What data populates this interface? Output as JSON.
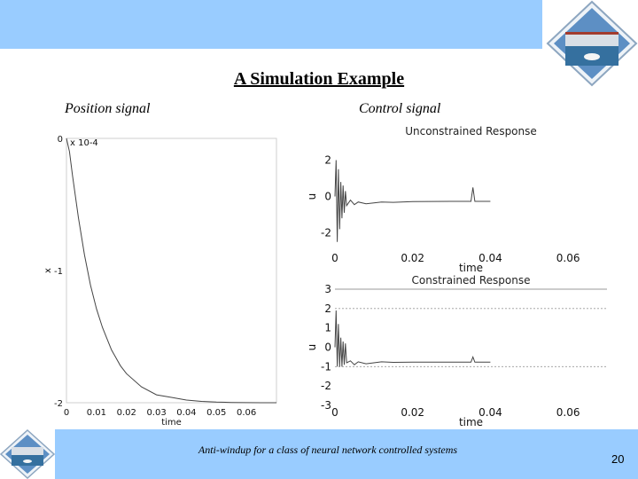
{
  "slide": {
    "title": "A Simulation Example",
    "left_caption": "Position signal",
    "right_caption": "Control signal",
    "footer": "Anti-windup for a class of neural network controlled systems",
    "page_number": "20"
  },
  "colors": {
    "band": "#99ccff",
    "logo_sky": "#5d8fc4",
    "logo_water": "#35709f"
  },
  "chart_data": [
    {
      "type": "line",
      "title": "",
      "xlabel": "time",
      "ylabel": "x",
      "y_multiplier": "x 10-4",
      "xlim": [
        0,
        0.07
      ],
      "ylim": [
        -2,
        0
      ],
      "xticks": [
        "0",
        "0.01",
        "0.02",
        "0.03",
        "0.04",
        "0.05",
        "0.06"
      ],
      "xtick_values": [
        0,
        0.01,
        0.02,
        0.03,
        0.04,
        0.05,
        0.06
      ],
      "yticks": [
        "0",
        "-1",
        "-2"
      ],
      "ytick_values": [
        0,
        -1,
        -2
      ],
      "series": [
        {
          "x": [
            0,
            0.001,
            0.002,
            0.004,
            0.006,
            0.008,
            0.01,
            0.012,
            0.015,
            0.018,
            0.02,
            0.025,
            0.03,
            0.035,
            0.04,
            0.045,
            0.05,
            0.055,
            0.06,
            0.065,
            0.07
          ],
          "values": [
            0,
            -0.1,
            -0.28,
            -0.6,
            -0.88,
            -1.11,
            -1.29,
            -1.43,
            -1.6,
            -1.72,
            -1.78,
            -1.88,
            -1.94,
            -1.96,
            -1.98,
            -1.99,
            -1.995,
            -1.998,
            -1.999,
            -2.0,
            -2.0
          ]
        }
      ]
    },
    {
      "type": "line",
      "title": "Unconstrained Response",
      "xlabel": "time",
      "ylabel": "u",
      "xlim": [
        0,
        0.07
      ],
      "ylim": [
        -3,
        3
      ],
      "xticks": [
        "0",
        "0.02",
        "0.04",
        "0.06"
      ],
      "xtick_values": [
        0,
        0.02,
        0.04,
        0.06
      ],
      "yticks": [
        "2",
        "0",
        "-2"
      ],
      "ytick_values": [
        2,
        0,
        -2
      ],
      "series": [
        {
          "x": [
            0,
            0.0003,
            0.0006,
            0.0009,
            0.0012,
            0.0015,
            0.0018,
            0.0021,
            0.0024,
            0.0027,
            0.003,
            0.004,
            0.005,
            0.006,
            0.008,
            0.01,
            0.012,
            0.015,
            0.02,
            0.03,
            0.035,
            0.0355,
            0.036,
            0.04
          ],
          "values": [
            0,
            2.0,
            -2.5,
            1.5,
            -1.8,
            0.8,
            -1.2,
            0.6,
            -0.9,
            0.3,
            -0.5,
            -0.2,
            -0.45,
            -0.3,
            -0.4,
            -0.35,
            -0.3,
            -0.32,
            -0.28,
            -0.27,
            -0.27,
            0.5,
            -0.27,
            -0.27
          ]
        }
      ]
    },
    {
      "type": "line",
      "title": "Constrained Response",
      "xlabel": "time",
      "ylabel": "u",
      "xlim": [
        0,
        0.07
      ],
      "ylim": [
        -3,
        3
      ],
      "xticks": [
        "0",
        "0.02",
        "0.04",
        "0.06"
      ],
      "xtick_values": [
        0,
        0.02,
        0.04,
        0.06
      ],
      "yticks": [
        "3",
        "2",
        "1",
        "0",
        "-1",
        "-2",
        "-3"
      ],
      "ytick_values": [
        3,
        2,
        1,
        0,
        -1,
        -2,
        -3
      ],
      "bounds": [
        2,
        -1
      ],
      "series": [
        {
          "x": [
            0,
            0.0003,
            0.0006,
            0.0009,
            0.0012,
            0.0015,
            0.0018,
            0.0021,
            0.0024,
            0.0027,
            0.003,
            0.004,
            0.005,
            0.006,
            0.008,
            0.01,
            0.012,
            0.015,
            0.02,
            0.03,
            0.035,
            0.0355,
            0.036,
            0.04
          ],
          "values": [
            0,
            1.9,
            -1.0,
            1.2,
            -1.0,
            0.5,
            -1.0,
            0.3,
            -0.9,
            0.2,
            -0.8,
            -0.7,
            -0.9,
            -0.75,
            -0.85,
            -0.8,
            -0.75,
            -0.78,
            -0.77,
            -0.77,
            -0.77,
            -0.5,
            -0.77,
            -0.77
          ]
        }
      ]
    }
  ]
}
